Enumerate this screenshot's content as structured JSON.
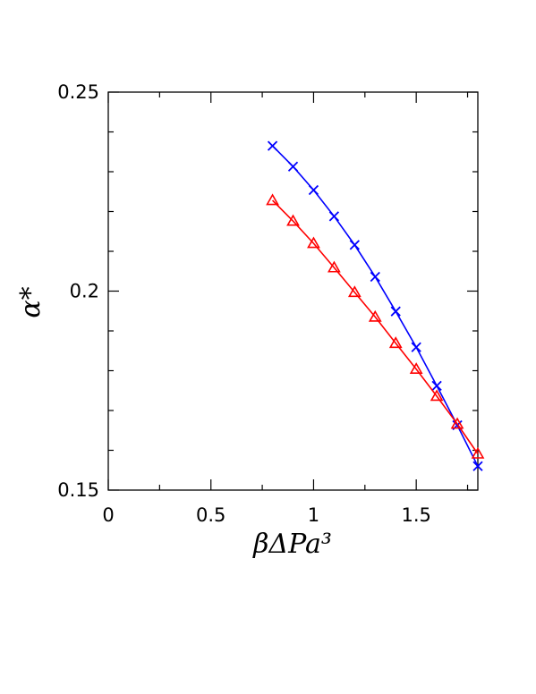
{
  "chart_data": {
    "type": "line",
    "title": "",
    "xlabel": "βΔPa³",
    "ylabel": "α*",
    "xlim": [
      0,
      1.8
    ],
    "ylim": [
      0.15,
      0.25
    ],
    "x_ticks": [
      "0",
      "0.5",
      "1",
      "1.5"
    ],
    "y_ticks": [
      "0.15",
      "0.2",
      "0.25"
    ],
    "grid": false,
    "series": [
      {
        "marker": "cross",
        "color": "#0000ff",
        "x": [
          0.8,
          0.9,
          1.0,
          1.1,
          1.2,
          1.3,
          1.4,
          1.5,
          1.6,
          1.7,
          1.8
        ],
        "y": [
          0.2365,
          0.2313,
          0.2254,
          0.2188,
          0.2116,
          0.2036,
          0.1949,
          0.1859,
          0.1762,
          0.1663,
          0.156
        ]
      },
      {
        "marker": "triangle",
        "color": "#ff0000",
        "x": [
          0.8,
          0.9,
          1.0,
          1.1,
          1.2,
          1.3,
          1.4,
          1.5,
          1.6,
          1.7,
          1.8
        ],
        "y": [
          0.2228,
          0.2176,
          0.212,
          0.2059,
          0.1997,
          0.1935,
          0.1869,
          0.1804,
          0.1736,
          0.1666,
          0.1591
        ]
      }
    ]
  }
}
